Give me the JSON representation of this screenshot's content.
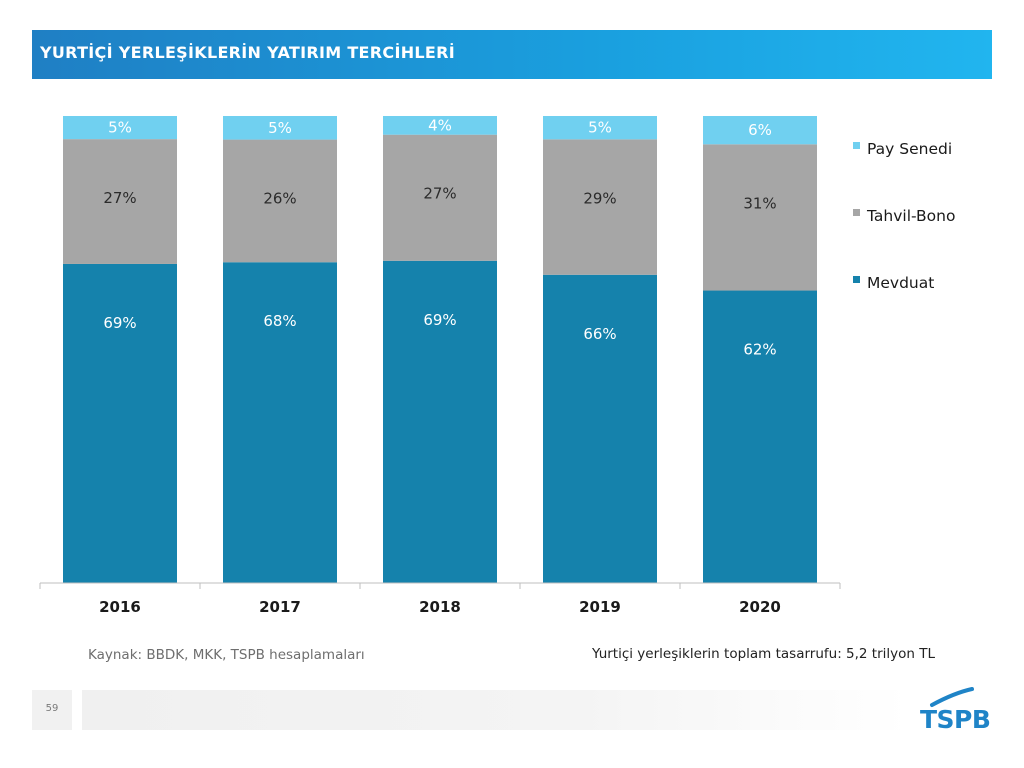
{
  "header": {
    "title": "YURTİÇİ YERLEŞİKLERİN YATIRIM TERCİHLERİ"
  },
  "chart_data": {
    "type": "bar",
    "stacked": true,
    "percent_stacked": true,
    "categories": [
      "2016",
      "2017",
      "2018",
      "2019",
      "2020"
    ],
    "series": [
      {
        "name": "Mevduat",
        "values": [
          69,
          68,
          69,
          66,
          62
        ],
        "labels": [
          "69%",
          "68%",
          "69%",
          "66%",
          "62%"
        ],
        "color": "#1582ac"
      },
      {
        "name": "Tahvil-Bono",
        "values": [
          27,
          26,
          27,
          29,
          31
        ],
        "labels": [
          "27%",
          "26%",
          "27%",
          "29%",
          "31%"
        ],
        "color": "#a6a6a6"
      },
      {
        "name": "Pay Senedi",
        "values": [
          5,
          5,
          4,
          5,
          6
        ],
        "labels": [
          "5%",
          "5%",
          "4%",
          "5%",
          "6%"
        ],
        "color": "#70d0f0"
      }
    ],
    "legend_order": [
      "Pay Senedi",
      "Tahvil-Bono",
      "Mevduat"
    ],
    "legend_position": "right",
    "ylim": [
      0,
      100
    ],
    "grid": false
  },
  "footer": {
    "source": "Kaynak: BBDK, MKK, TSPB hesaplamaları",
    "note": "Yurtiçi yerleşiklerin toplam tasarrufu: 5,2 trilyon TL",
    "page_number": "59",
    "logo_text": "TSPB"
  }
}
